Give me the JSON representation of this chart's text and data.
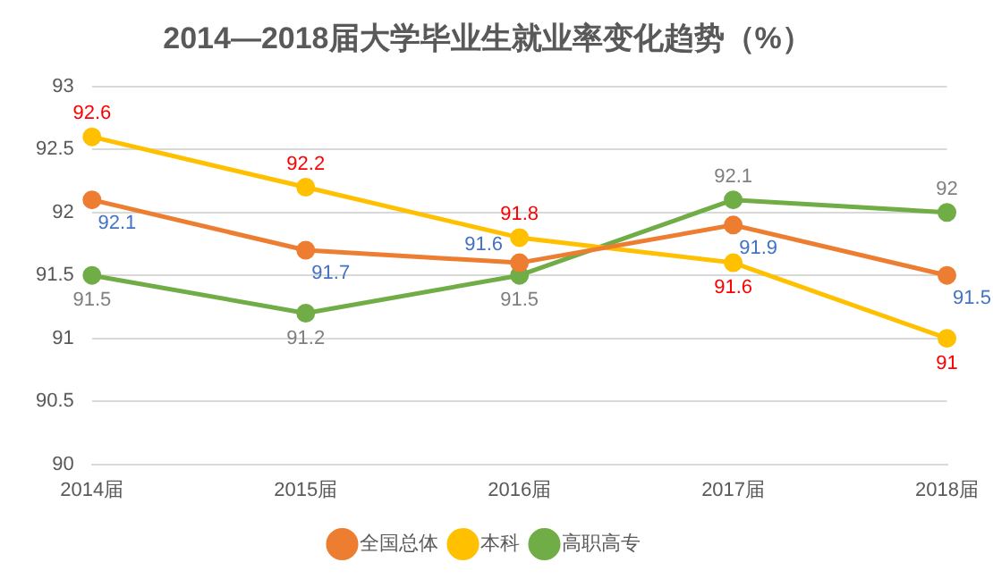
{
  "chart_data": {
    "type": "line",
    "title": "2014—2018届大学毕业生就业率变化趋势（%）",
    "categories": [
      "2014届",
      "2015届",
      "2016届",
      "2017届",
      "2018届"
    ],
    "series": [
      {
        "name": "全国总体",
        "color": "#ed7d31",
        "values": [
          92.1,
          91.7,
          91.6,
          91.9,
          91.5
        ]
      },
      {
        "name": "本科",
        "color": "#ffc000",
        "values": [
          92.6,
          92.2,
          91.8,
          91.6,
          91
        ]
      },
      {
        "name": "高职高专",
        "color": "#70ad47",
        "values": [
          91.5,
          91.2,
          91.5,
          92.1,
          92
        ]
      }
    ],
    "ylim": [
      90,
      93
    ],
    "yticks": [
      90,
      90.5,
      91,
      91.5,
      92,
      92.5,
      93
    ],
    "grid": "y",
    "legend": "bottom",
    "marker": "circle",
    "line_style": "solid",
    "data_labels": true
  }
}
